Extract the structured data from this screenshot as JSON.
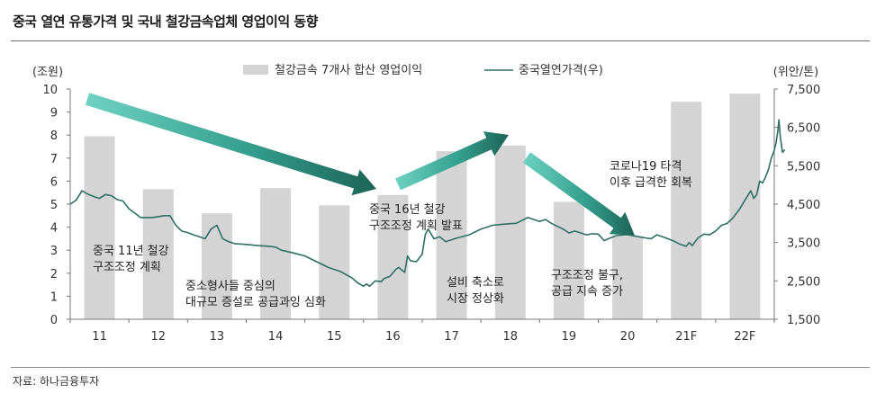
{
  "title": "중국 열연 유통가격 및 국내 철강금속업체 영업이익 동향",
  "source": "자료: 하나금융투자",
  "chart_data": {
    "type": "bar+line",
    "categories": [
      "11",
      "12",
      "13",
      "14",
      "15",
      "16",
      "17",
      "18",
      "19",
      "20",
      "21F",
      "22F"
    ],
    "left_axis": {
      "unit_label": "(조원)",
      "min": 0,
      "max": 10,
      "ticks": [
        0,
        1,
        2,
        3,
        4,
        5,
        6,
        7,
        8,
        9,
        10
      ]
    },
    "right_axis": {
      "unit_label": "(위안/톤)",
      "min": 1500,
      "max": 7500,
      "ticks": [
        "1,500",
        "2,500",
        "3,500",
        "4,500",
        "5,500",
        "6,500",
        "7,500"
      ]
    },
    "legend": {
      "position": "top",
      "bar_label": "철강금속 7개사 합산 영업이익",
      "line_label": "중국열연가격(우)"
    },
    "bar_series": {
      "name": "철강금속 7개사 합산 영업이익",
      "color": "#d4d4d4",
      "values": [
        7.95,
        5.65,
        4.6,
        5.7,
        4.95,
        5.4,
        7.3,
        7.55,
        5.1,
        3.6,
        9.45,
        9.8
      ]
    },
    "line_series": {
      "name": "중국열연가격(우)",
      "color": "#2f6f66",
      "points": [
        [
          0.0,
          4500
        ],
        [
          0.1,
          4600
        ],
        [
          0.2,
          4850
        ],
        [
          0.3,
          4760
        ],
        [
          0.4,
          4700
        ],
        [
          0.5,
          4650
        ],
        [
          0.6,
          4750
        ],
        [
          0.7,
          4720
        ],
        [
          0.8,
          4620
        ],
        [
          0.9,
          4580
        ],
        [
          1.0,
          4380
        ],
        [
          1.2,
          4150
        ],
        [
          1.4,
          4150
        ],
        [
          1.6,
          4200
        ],
        [
          1.7,
          4200
        ],
        [
          1.8,
          3950
        ],
        [
          1.9,
          3800
        ],
        [
          2.0,
          3760
        ],
        [
          2.1,
          3700
        ],
        [
          2.2,
          3650
        ],
        [
          2.3,
          3600
        ],
        [
          2.4,
          3850
        ],
        [
          2.5,
          3950
        ],
        [
          2.6,
          3600
        ],
        [
          2.7,
          3520
        ],
        [
          2.8,
          3470
        ],
        [
          3.0,
          3450
        ],
        [
          3.2,
          3420
        ],
        [
          3.4,
          3400
        ],
        [
          3.5,
          3380
        ],
        [
          3.6,
          3300
        ],
        [
          3.8,
          3230
        ],
        [
          4.0,
          3150
        ],
        [
          4.2,
          3000
        ],
        [
          4.4,
          2850
        ],
        [
          4.6,
          2750
        ],
        [
          4.8,
          2580
        ],
        [
          4.9,
          2450
        ],
        [
          5.0,
          2360
        ],
        [
          5.05,
          2420
        ],
        [
          5.1,
          2360
        ],
        [
          5.2,
          2500
        ],
        [
          5.3,
          2480
        ],
        [
          5.35,
          2560
        ],
        [
          5.45,
          2620
        ],
        [
          5.55,
          2800
        ],
        [
          5.6,
          2850
        ],
        [
          5.7,
          2720
        ],
        [
          5.75,
          3150
        ],
        [
          5.8,
          3020
        ],
        [
          5.9,
          3000
        ],
        [
          6.0,
          3200
        ],
        [
          6.05,
          3700
        ],
        [
          6.1,
          3850
        ],
        [
          6.2,
          3600
        ],
        [
          6.3,
          3650
        ],
        [
          6.4,
          3520
        ],
        [
          6.6,
          3620
        ],
        [
          6.8,
          3700
        ],
        [
          7.0,
          3850
        ],
        [
          7.2,
          3950
        ],
        [
          7.4,
          3980
        ],
        [
          7.6,
          4000
        ],
        [
          7.8,
          4150
        ],
        [
          8.0,
          4050
        ],
        [
          8.1,
          4100
        ],
        [
          8.2,
          4000
        ],
        [
          8.4,
          3850
        ],
        [
          8.5,
          3750
        ],
        [
          8.6,
          3800
        ],
        [
          8.8,
          3700
        ],
        [
          8.9,
          3730
        ],
        [
          9.0,
          3720
        ],
        [
          9.1,
          3550
        ],
        [
          9.3,
          3680
        ],
        [
          9.5,
          3700
        ],
        [
          9.7,
          3650
        ],
        [
          9.8,
          3620
        ],
        [
          9.9,
          3600
        ],
        [
          10.0,
          3700
        ],
        [
          10.15,
          3620
        ],
        [
          10.3,
          3530
        ],
        [
          10.4,
          3450
        ],
        [
          10.5,
          3400
        ],
        [
          10.55,
          3500
        ],
        [
          10.6,
          3420
        ],
        [
          10.7,
          3620
        ],
        [
          10.8,
          3720
        ],
        [
          10.9,
          3700
        ],
        [
          11.0,
          3800
        ],
        [
          11.1,
          3950
        ],
        [
          11.2,
          4000
        ],
        [
          11.3,
          4150
        ],
        [
          11.4,
          4350
        ],
        [
          11.5,
          4600
        ],
        [
          11.6,
          4850
        ],
        [
          11.65,
          4650
        ],
        [
          11.7,
          4750
        ],
        [
          11.75,
          5100
        ],
        [
          11.8,
          5050
        ],
        [
          11.85,
          5200
        ],
        [
          11.9,
          5400
        ],
        [
          11.95,
          5700
        ],
        [
          12.0,
          5900
        ],
        [
          12.03,
          6100
        ],
        [
          12.06,
          6400
        ],
        [
          12.08,
          6700
        ],
        [
          12.1,
          6300
        ],
        [
          12.14,
          5850
        ],
        [
          12.18,
          5920
        ]
      ]
    },
    "annotations": [
      {
        "lines": [
          "중국 11년 철강",
          "구조조정 계획"
        ]
      },
      {
        "lines": [
          "중소형사들 중심의",
          "대규모 증설로 공급과잉 심화"
        ]
      },
      {
        "lines": [
          "중국 16년 철강",
          "구조조정 계획 발표"
        ]
      },
      {
        "lines": [
          "설비 축소로",
          "시장 정상화"
        ]
      },
      {
        "lines": [
          "구조조정 불구,",
          "공급 지속 증가"
        ]
      },
      {
        "lines": [
          "코로나19 타격",
          "이후 급격한 회복"
        ]
      }
    ]
  }
}
